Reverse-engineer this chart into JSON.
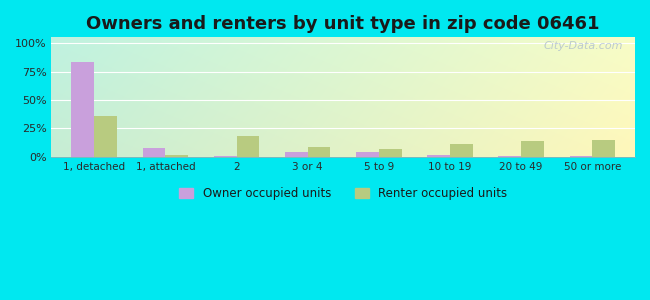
{
  "title": "Owners and renters by unit type in zip code 06461",
  "categories": [
    "1, detached",
    "1, attached",
    "2",
    "3 or 4",
    "5 to 9",
    "10 to 19",
    "20 to 49",
    "50 or more"
  ],
  "owner_values": [
    83,
    8,
    0.5,
    4,
    4,
    2,
    0.5,
    0.5
  ],
  "renter_values": [
    36,
    1.5,
    18,
    9,
    7,
    11,
    14,
    15
  ],
  "owner_color": "#c9a0dc",
  "renter_color": "#b8cb80",
  "title_fontsize": 13,
  "ylabel_ticks": [
    "0%",
    "25%",
    "50%",
    "75%",
    "100%"
  ],
  "ylabel_values": [
    0,
    25,
    50,
    75,
    100
  ],
  "ylim": [
    0,
    105
  ],
  "outer_bg": "#00e8f0",
  "watermark": "City-Data.com",
  "bar_width": 0.32,
  "legend_owner": "Owner occupied units",
  "legend_renter": "Renter occupied units"
}
